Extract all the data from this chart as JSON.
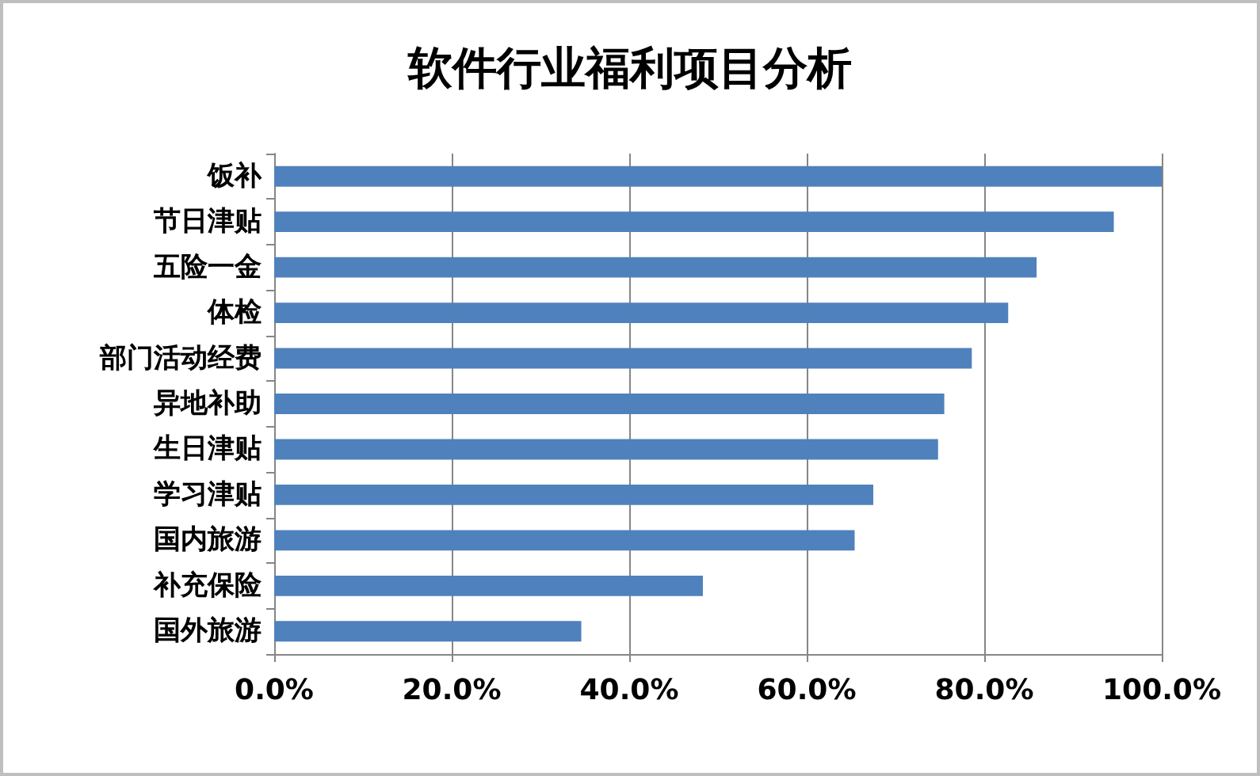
{
  "chart_data": {
    "type": "bar",
    "orientation": "horizontal",
    "title": "软件行业福利项目分析",
    "categories": [
      "饭补",
      "节日津贴",
      "五险一金",
      "体检",
      "部门活动经费",
      "异地补助",
      "生日津贴",
      "学习津贴",
      "国内旅游",
      "补充保险",
      "国外旅游"
    ],
    "values": [
      100,
      94.6,
      85.9,
      82.7,
      78.6,
      75.5,
      74.8,
      67.5,
      65.4,
      48.3,
      34.6
    ],
    "color": "#4f81bd",
    "xlim": [
      0,
      100
    ],
    "xticks": [
      {
        "value": 0,
        "label": "0.0%"
      },
      {
        "value": 20,
        "label": "20.0%"
      },
      {
        "value": 40,
        "label": "40.0%"
      },
      {
        "value": 60,
        "label": "60.0%"
      },
      {
        "value": 80,
        "label": "80.0%"
      },
      {
        "value": 100,
        "label": "100.0%"
      }
    ],
    "grid": "x"
  }
}
